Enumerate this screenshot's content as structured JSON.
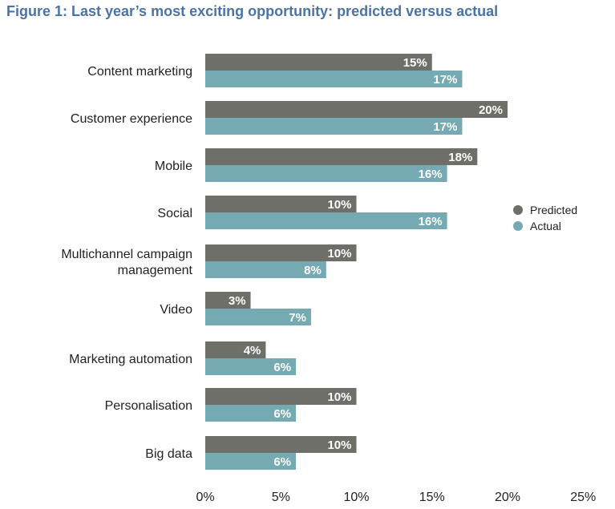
{
  "title": "Figure 1: Last year’s most exciting opportunity: predicted versus actual",
  "colors": {
    "predicted": "#6e6f69",
    "actual": "#76aab2",
    "title": "#4a73a8"
  },
  "chart_data": {
    "type": "bar",
    "orientation": "horizontal",
    "title": "Figure 1: Last year’s most exciting opportunity: predicted versus actual",
    "categories": [
      [
        "Content marketing"
      ],
      [
        "Customer experience"
      ],
      [
        "Mobile"
      ],
      [
        "Social"
      ],
      [
        "Multichannel campaign",
        "management"
      ],
      [
        "Video"
      ],
      [
        "Marketing automation"
      ],
      [
        "Personalisation"
      ],
      [
        "Big data"
      ]
    ],
    "series": [
      {
        "name": "Predicted",
        "values": [
          15,
          20,
          18,
          10,
          10,
          3,
          4,
          10,
          10
        ]
      },
      {
        "name": "Actual",
        "values": [
          17,
          17,
          16,
          16,
          8,
          7,
          6,
          6,
          6
        ]
      }
    ],
    "value_suffix": "%",
    "xlim": [
      0,
      25
    ],
    "xticks": [
      0,
      5,
      10,
      15,
      20,
      25
    ],
    "xtick_labels": [
      "0%",
      "5%",
      "10%",
      "15%",
      "20%",
      "25%"
    ],
    "grid": false,
    "legend_position": "right"
  }
}
